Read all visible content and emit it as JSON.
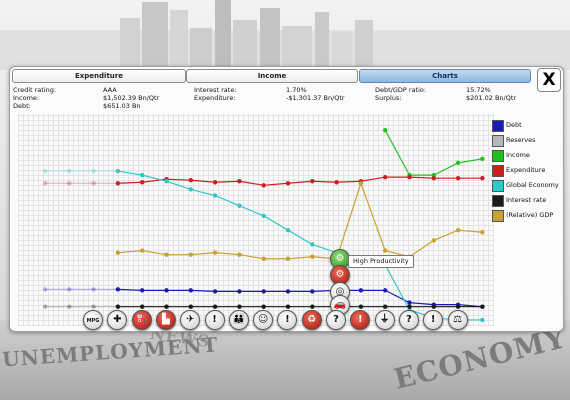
{
  "tabs": [
    {
      "label": "Expenditure",
      "active": false
    },
    {
      "label": "Income",
      "active": false
    },
    {
      "label": "Charts",
      "active": true
    }
  ],
  "close_label": "X",
  "stats": {
    "credit_rating_label": "Credit rating:",
    "credit_rating_value": "AAA",
    "income_label": "Income:",
    "income_value": "$1,502.39 Bn/Qtr",
    "debt_label": "Debt:",
    "debt_value": "$651.03 Bn",
    "interest_rate_label": "Interest rate:",
    "interest_rate_value": "1.70%",
    "expenditure_label": "Expenditure:",
    "expenditure_value": "-$1,301.37 Bn/Qtr",
    "debt_gdp_label": "Debt/GDP ratio:",
    "debt_gdp_value": "15.72%",
    "surplus_label": "Surplus:",
    "surplus_value": "$201.02 Bn/Qtr"
  },
  "legend": [
    {
      "label": "Debt",
      "color": "#1a1ab8"
    },
    {
      "label": "Reserves",
      "color": "#b8b8b8"
    },
    {
      "label": "Income",
      "color": "#22c01e"
    },
    {
      "label": "Expenditure",
      "color": "#c8201c"
    },
    {
      "label": "Global Economy",
      "color": "#2ec8c8"
    },
    {
      "label": "Interest rate",
      "color": "#1a1a1a"
    },
    {
      "label": "(Relative) GDP",
      "color": "#c9a031"
    }
  ],
  "tooltip": "High Productivity",
  "chart_data": {
    "type": "line",
    "x": [
      0,
      1,
      2,
      3,
      4,
      5,
      6,
      7,
      8,
      9,
      10,
      11,
      12,
      13,
      14,
      15,
      16,
      17,
      18
    ],
    "ylim": [
      0,
      100
    ],
    "grid": true,
    "legend_position": "right",
    "series": [
      {
        "name": "Debt",
        "color": "#1a1ab8",
        "values": [
          16,
          16,
          16,
          16,
          15.5,
          15.5,
          15.5,
          15,
          15,
          15,
          15,
          15,
          15.5,
          15.5,
          15.5,
          9.5,
          8.5,
          8.5,
          7.5
        ],
        "faded_until": 3
      },
      {
        "name": "Reserves",
        "color": "#b8b8b8",
        "values": [
          null,
          null,
          null,
          null,
          null,
          null,
          null,
          null,
          null,
          null,
          null,
          null,
          null,
          null,
          null,
          null,
          null,
          null,
          null
        ],
        "faded_until": 0
      },
      {
        "name": "Income",
        "color": "#22c01e",
        "values": [
          null,
          null,
          null,
          null,
          null,
          null,
          null,
          null,
          null,
          null,
          null,
          null,
          null,
          null,
          94,
          72,
          72,
          78,
          80
        ],
        "faded_until": 0
      },
      {
        "name": "Expenditure",
        "color": "#c8201c",
        "values": [
          68,
          68,
          68,
          68,
          68.5,
          70,
          69.5,
          68.5,
          69,
          67,
          68,
          69,
          68.5,
          69,
          71,
          71,
          70.5,
          70.5,
          70.5
        ],
        "faded_until": 3
      },
      {
        "name": "Global Economy",
        "color": "#2ec8c8",
        "values": [
          74,
          74,
          74,
          74,
          72,
          69,
          65,
          62,
          57,
          52,
          45,
          38,
          34,
          30,
          28,
          6,
          2,
          1,
          1
        ],
        "faded_until": 3
      },
      {
        "name": "Interest rate",
        "color": "#1a1a1a",
        "values": [
          7.5,
          7.5,
          7.5,
          7.5,
          7.5,
          7.5,
          7.5,
          7.5,
          7.5,
          7.5,
          7.5,
          7.5,
          7.5,
          7.5,
          7.5,
          7.5,
          7.5,
          7.5,
          7.5
        ],
        "faded_until": 3
      },
      {
        "name": "(Relative) GDP",
        "color": "#c9a031",
        "values": [
          null,
          null,
          null,
          34,
          35,
          33,
          33,
          34,
          33,
          31,
          31,
          32,
          31,
          68,
          35,
          32,
          40,
          45,
          44
        ],
        "faded_until": 0
      }
    ]
  },
  "event_icons": [
    {
      "name": "mpg-icon",
      "style": "plain",
      "glyph": "MPG"
    },
    {
      "name": "medical-cross-icon",
      "style": "plain",
      "glyph": "✚"
    },
    {
      "name": "oil-pump-icon",
      "style": "red",
      "glyph": "⛽"
    },
    {
      "name": "factory-icon",
      "style": "red",
      "glyph": "▙"
    },
    {
      "name": "plane-icon",
      "style": "plain",
      "glyph": "✈"
    },
    {
      "name": "warning-icon-1",
      "style": "plain",
      "glyph": "!"
    },
    {
      "name": "family-icon",
      "style": "plain",
      "glyph": "👪"
    },
    {
      "name": "theatre-masks-icon",
      "style": "plain",
      "glyph": "☺"
    },
    {
      "name": "warning-icon-2",
      "style": "plain",
      "glyph": "!"
    },
    {
      "name": "recycle-icon",
      "style": "red",
      "glyph": "♻"
    },
    {
      "name": "question-icon-1",
      "style": "plain",
      "glyph": "?"
    },
    {
      "name": "warning-icon-3",
      "style": "red",
      "glyph": "!"
    },
    {
      "name": "plug-icon",
      "style": "plain",
      "glyph": "⏚"
    },
    {
      "name": "question-icon-2",
      "style": "plain",
      "glyph": "?"
    },
    {
      "name": "warning-icon-4",
      "style": "plain",
      "glyph": "!"
    },
    {
      "name": "gavel-icon",
      "style": "plain",
      "glyph": "⚖"
    }
  ],
  "stack_icons": [
    {
      "name": "productivity-gears-icon",
      "style": "green",
      "glyph": "⚙"
    },
    {
      "name": "productivity-gears-red-icon",
      "style": "red",
      "glyph": "⚙"
    },
    {
      "name": "satellite-icon",
      "style": "plain",
      "glyph": "◎"
    },
    {
      "name": "car-icon",
      "style": "plain",
      "glyph": "🚗"
    }
  ],
  "paper_words": [
    "UNEMPLOYMENT",
    "ECONOMY",
    "NEWS"
  ]
}
